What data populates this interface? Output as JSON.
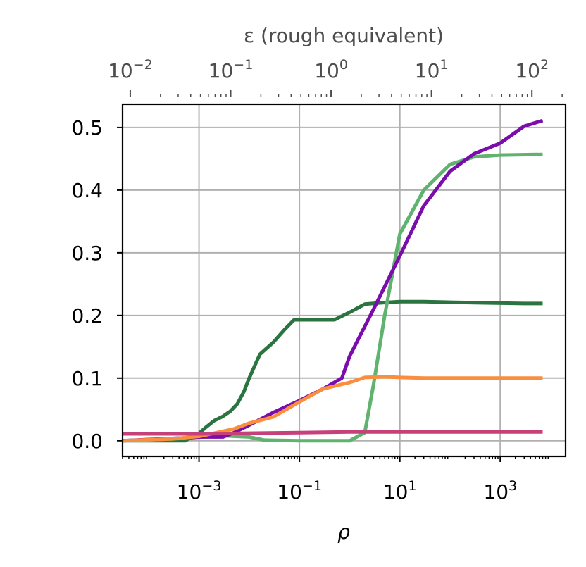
{
  "chart_data": {
    "type": "line",
    "xlabel": "ρ",
    "ylabel": "",
    "x_scale": "log",
    "xlim": [
      3e-05,
      20000
    ],
    "ylim": [
      -0.025,
      0.537
    ],
    "grid": true,
    "x_ticks": [
      {
        "value": 0.001,
        "base": "10",
        "exp": "−3"
      },
      {
        "value": 0.1,
        "base": "10",
        "exp": "−1"
      },
      {
        "value": 10,
        "base": "10",
        "exp": "1"
      },
      {
        "value": 1000,
        "base": "10",
        "exp": "3"
      }
    ],
    "y_ticks": [
      {
        "value": 0.0,
        "label": "0.0"
      },
      {
        "value": 0.1,
        "label": "0.1"
      },
      {
        "value": 0.2,
        "label": "0.2"
      },
      {
        "value": 0.3,
        "label": "0.3"
      },
      {
        "value": 0.4,
        "label": "0.4"
      },
      {
        "value": 0.5,
        "label": "0.5"
      }
    ],
    "top_axis": {
      "label": "ε (rough equivalent)",
      "scale": "log",
      "color": "#4d4d4d",
      "ticks": [
        {
          "value": 0.01,
          "x_equiv": 4.27e-05,
          "base": "10",
          "exp": "−2"
        },
        {
          "value": 0.1,
          "x_equiv": 0.00427,
          "base": "10",
          "exp": "−1"
        },
        {
          "value": 1,
          "x_equiv": 0.427,
          "base": "10",
          "exp": "0"
        },
        {
          "value": 10,
          "x_equiv": 42.7,
          "base": "10",
          "exp": "1"
        },
        {
          "value": 100,
          "x_equiv": 4270,
          "base": "10",
          "exp": "2"
        }
      ]
    },
    "series": [
      {
        "color": "#2b7440",
        "x": [
          3e-05,
          0.00053,
          0.001,
          0.00135,
          0.002,
          0.003,
          0.0042,
          0.0058,
          0.0078,
          0.01,
          0.0163,
          0.03,
          0.05,
          0.0785,
          0.125,
          0.2,
          0.5,
          1,
          2,
          4,
          10,
          30,
          100,
          500,
          3000,
          7000
        ],
        "y": [
          0.0,
          0.0,
          0.012,
          0.021,
          0.032,
          0.039,
          0.047,
          0.059,
          0.078,
          0.1,
          0.138,
          0.157,
          0.177,
          0.193,
          0.193,
          0.193,
          0.193,
          0.205,
          0.218,
          0.22,
          0.222,
          0.222,
          0.221,
          0.22,
          0.219,
          0.219
        ]
      },
      {
        "color": "#5fb36f",
        "x": [
          3e-05,
          0.0003,
          0.003,
          0.01,
          0.02,
          0.1,
          0.5,
          1,
          2,
          3,
          5,
          10,
          30,
          100,
          300,
          1000,
          7000
        ],
        "y": [
          0.0,
          0.003,
          0.008,
          0.006,
          0.001,
          0.0,
          0.0,
          0.0,
          0.013,
          0.09,
          0.2,
          0.33,
          0.4,
          0.441,
          0.453,
          0.456,
          0.457
        ]
      },
      {
        "color": "#7a0dab",
        "x": [
          3e-05,
          0.0007,
          0.001,
          0.0017,
          0.003,
          0.005,
          0.01,
          0.03,
          0.1,
          0.3,
          0.7,
          1,
          3,
          10,
          30,
          100,
          300,
          1000,
          3000,
          7000
        ],
        "y": [
          0.0,
          0.005,
          0.006,
          0.006,
          0.006,
          0.013,
          0.025,
          0.045,
          0.064,
          0.083,
          0.1,
          0.135,
          0.21,
          0.295,
          0.375,
          0.43,
          0.458,
          0.475,
          0.502,
          0.511
        ]
      },
      {
        "color": "#f98e3e",
        "x": [
          3e-05,
          0.0003,
          0.001,
          0.002,
          0.005,
          0.01,
          0.03,
          0.1,
          0.3,
          1,
          2,
          5,
          10,
          30,
          100,
          1000,
          7000
        ],
        "y": [
          0.0,
          0.003,
          0.007,
          0.012,
          0.019,
          0.028,
          0.038,
          0.062,
          0.083,
          0.093,
          0.101,
          0.102,
          0.101,
          0.1,
          0.1,
          0.1,
          0.1
        ]
      },
      {
        "color": "#c6407a",
        "x": [
          3e-05,
          0.001,
          0.01,
          0.1,
          1,
          10,
          100,
          1000,
          7000
        ],
        "y": [
          0.011,
          0.011,
          0.012,
          0.013,
          0.014,
          0.014,
          0.014,
          0.014,
          0.014
        ]
      }
    ]
  }
}
